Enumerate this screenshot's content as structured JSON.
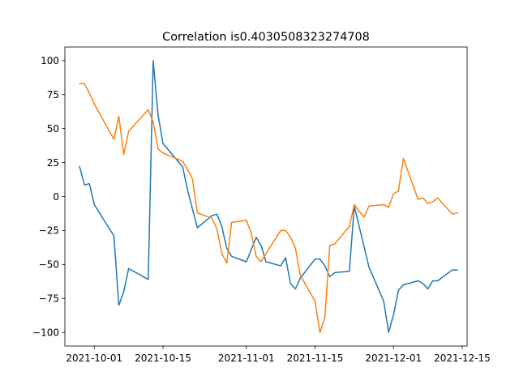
{
  "chart_data": {
    "type": "line",
    "title": "Correlation is0.4030508323274708",
    "xlabel": "",
    "ylabel": "",
    "x_axis_type": "date",
    "xlim": [
      "2021-09-25",
      "2021-12-16"
    ],
    "ylim": [
      -110,
      110
    ],
    "grid": false,
    "legend": "none",
    "x_ticks": [
      "2021-10-01",
      "2021-10-15",
      "2021-11-01",
      "2021-11-15",
      "2021-12-01",
      "2021-12-15"
    ],
    "y_ticks": [
      100,
      75,
      50,
      25,
      0,
      -25,
      -50,
      -75,
      -100
    ],
    "y_tick_labels": [
      "100",
      "75",
      "50",
      "25",
      "0",
      "−25",
      "−50",
      "−75",
      "−100"
    ],
    "series": [
      {
        "color": "#1f77b4",
        "points": [
          [
            "2021-09-28",
            22
          ],
          [
            "2021-09-29",
            8.5
          ],
          [
            "2021-09-30",
            9.5
          ],
          [
            "2021-10-01",
            -6
          ],
          [
            "2021-10-05",
            -29
          ],
          [
            "2021-10-06",
            -80
          ],
          [
            "2021-10-07",
            -70
          ],
          [
            "2021-10-08",
            -53
          ],
          [
            "2021-10-12",
            -61
          ],
          [
            "2021-10-13",
            100
          ],
          [
            "2021-10-14",
            60
          ],
          [
            "2021-10-15",
            39
          ],
          [
            "2021-10-19",
            22
          ],
          [
            "2021-10-20",
            5
          ],
          [
            "2021-10-22",
            -23
          ],
          [
            "2021-10-25",
            -14
          ],
          [
            "2021-10-26",
            -13
          ],
          [
            "2021-10-27",
            -22
          ],
          [
            "2021-10-28",
            -38
          ],
          [
            "2021-10-29",
            -44
          ],
          [
            "2021-11-01",
            -48
          ],
          [
            "2021-11-03",
            -30
          ],
          [
            "2021-11-04",
            -36
          ],
          [
            "2021-11-05",
            -48
          ],
          [
            "2021-11-08",
            -51
          ],
          [
            "2021-11-09",
            -45
          ],
          [
            "2021-11-10",
            -64
          ],
          [
            "2021-11-11",
            -68
          ],
          [
            "2021-11-12",
            -60
          ],
          [
            "2021-11-15",
            -46
          ],
          [
            "2021-11-16",
            -46
          ],
          [
            "2021-11-17",
            -51
          ],
          [
            "2021-11-18",
            -59
          ],
          [
            "2021-11-19",
            -56
          ],
          [
            "2021-11-22",
            -55
          ],
          [
            "2021-11-23",
            -7
          ],
          [
            "2021-11-25",
            -37
          ],
          [
            "2021-11-26",
            -52
          ],
          [
            "2021-11-29",
            -77
          ],
          [
            "2021-11-30",
            -100
          ],
          [
            "2021-12-01",
            -87
          ],
          [
            "2021-12-02",
            -69
          ],
          [
            "2021-12-03",
            -65
          ],
          [
            "2021-12-06",
            -62
          ],
          [
            "2021-12-07",
            -64
          ],
          [
            "2021-12-08",
            -68
          ],
          [
            "2021-12-09",
            -62
          ],
          [
            "2021-12-10",
            -62
          ],
          [
            "2021-12-13",
            -54
          ],
          [
            "2021-12-14",
            -54
          ]
        ]
      },
      {
        "color": "#ff7f0e",
        "points": [
          [
            "2021-09-28",
            83
          ],
          [
            "2021-09-29",
            83
          ],
          [
            "2021-09-30",
            76
          ],
          [
            "2021-10-01",
            68
          ],
          [
            "2021-10-05",
            42
          ],
          [
            "2021-10-06",
            59
          ],
          [
            "2021-10-07",
            31
          ],
          [
            "2021-10-08",
            48
          ],
          [
            "2021-10-12",
            64
          ],
          [
            "2021-10-13",
            55
          ],
          [
            "2021-10-14",
            35
          ],
          [
            "2021-10-15",
            32
          ],
          [
            "2021-10-19",
            26
          ],
          [
            "2021-10-20",
            20
          ],
          [
            "2021-10-21",
            13
          ],
          [
            "2021-10-22",
            -12
          ],
          [
            "2021-10-25",
            -16
          ],
          [
            "2021-10-26",
            -24
          ],
          [
            "2021-10-27",
            -42
          ],
          [
            "2021-10-28",
            -49
          ],
          [
            "2021-10-29",
            -19
          ],
          [
            "2021-11-01",
            -17.5
          ],
          [
            "2021-11-02",
            -27
          ],
          [
            "2021-11-03",
            -44
          ],
          [
            "2021-11-04",
            -48
          ],
          [
            "2021-11-05",
            -42
          ],
          [
            "2021-11-08",
            -25
          ],
          [
            "2021-11-09",
            -25
          ],
          [
            "2021-11-10",
            -30
          ],
          [
            "2021-11-11",
            -38
          ],
          [
            "2021-11-12",
            -58
          ],
          [
            "2021-11-15",
            -77
          ],
          [
            "2021-11-16",
            -100
          ],
          [
            "2021-11-17",
            -89
          ],
          [
            "2021-11-18",
            -36
          ],
          [
            "2021-11-19",
            -35
          ],
          [
            "2021-11-22",
            -22
          ],
          [
            "2021-11-23",
            -6
          ],
          [
            "2021-11-24",
            -11
          ],
          [
            "2021-11-25",
            -15
          ],
          [
            "2021-11-26",
            -7
          ],
          [
            "2021-11-29",
            -6
          ],
          [
            "2021-11-30",
            -8
          ],
          [
            "2021-12-01",
            2
          ],
          [
            "2021-12-02",
            4
          ],
          [
            "2021-12-03",
            28
          ],
          [
            "2021-12-06",
            -2
          ],
          [
            "2021-12-07",
            -1
          ],
          [
            "2021-12-08",
            -5
          ],
          [
            "2021-12-09",
            -4
          ],
          [
            "2021-12-10",
            -1
          ],
          [
            "2021-12-13",
            -13
          ],
          [
            "2021-12-14",
            -12
          ]
        ]
      }
    ]
  }
}
